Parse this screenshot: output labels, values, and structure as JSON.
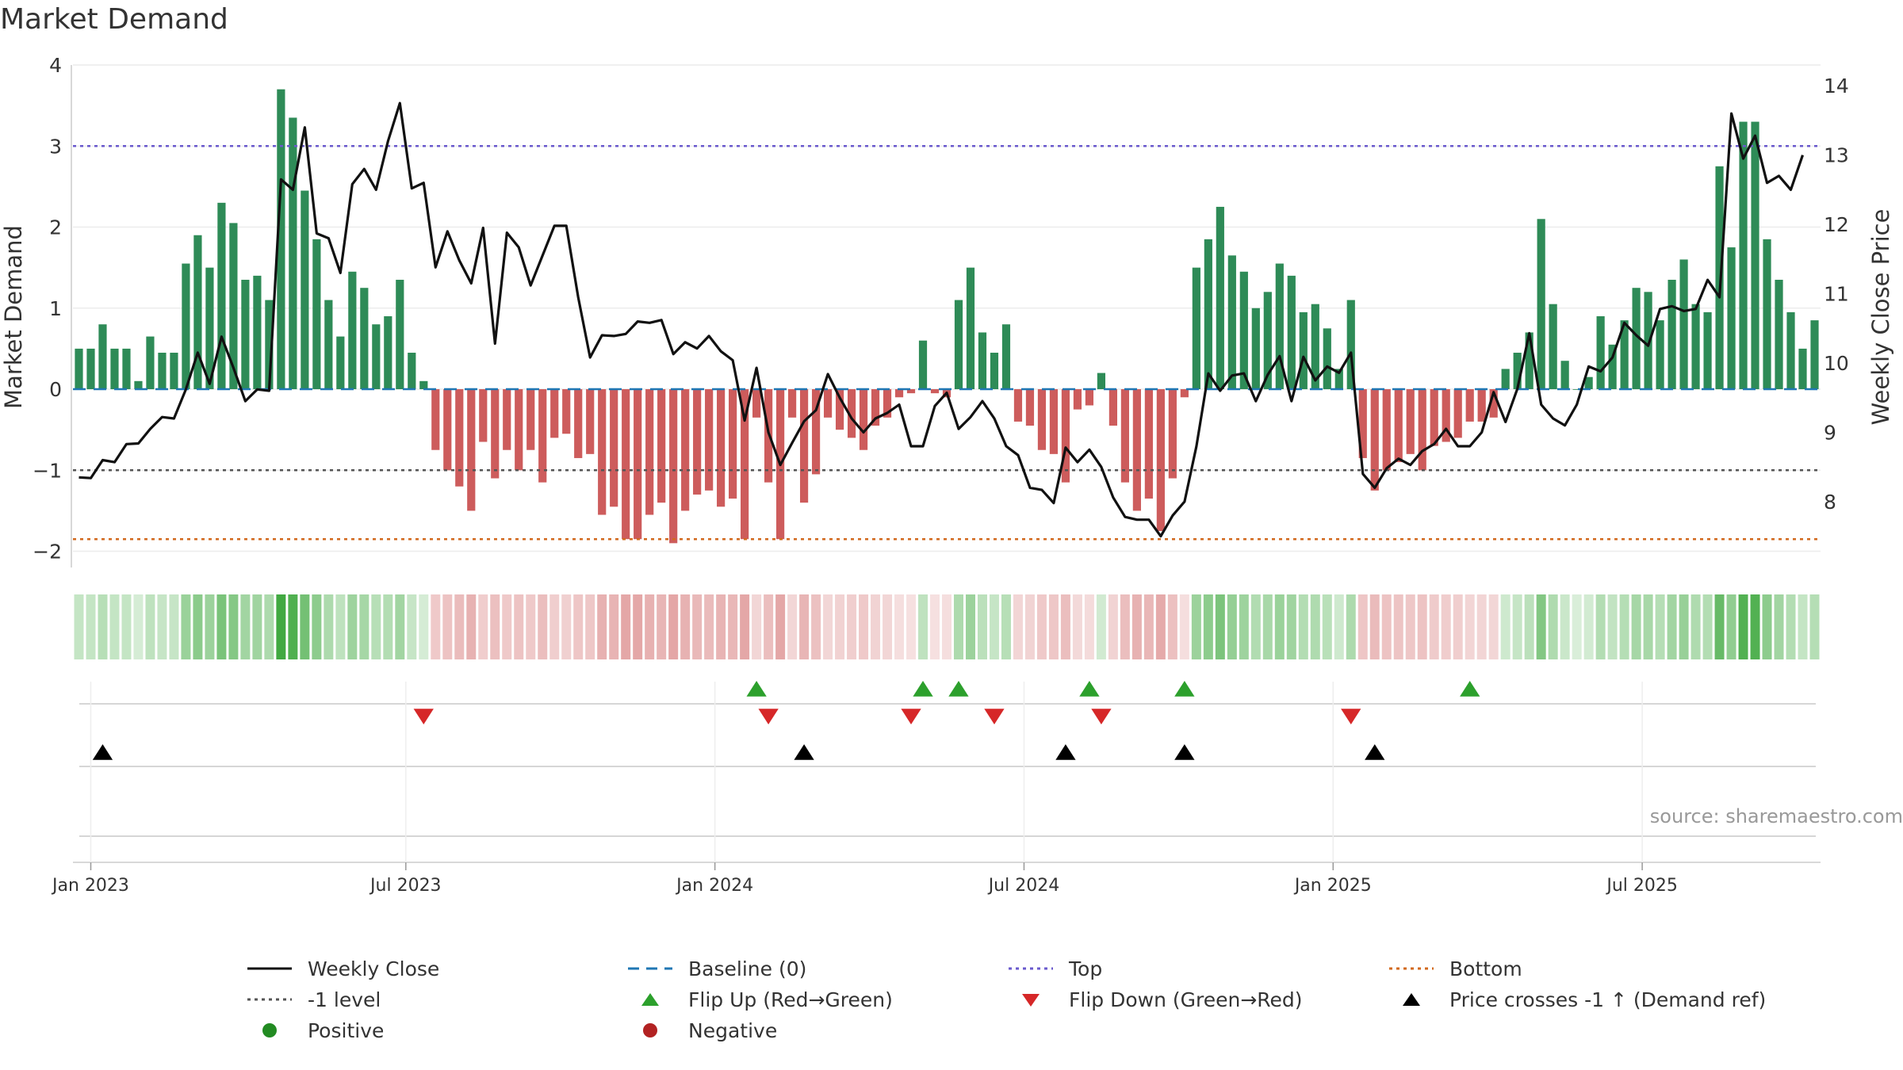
{
  "chart_data": {
    "type": "bar",
    "title": "Market Demand",
    "ylabel": "Market Demand",
    "ylabel_right": "Weekly Close Price",
    "ylim": [
      -2.2,
      4.0
    ],
    "ylim_right": [
      7.05,
      14.3
    ],
    "yticks": [
      "−2",
      "−1",
      "0",
      "1",
      "2",
      "3",
      "4"
    ],
    "yticks_right": [
      "8",
      "9",
      "10",
      "11",
      "12",
      "13",
      "14"
    ],
    "xticks": [
      "Jan 2023",
      "Jul 2023",
      "Jan 2024",
      "Jul 2024",
      "Jan 2025",
      "Jul 2025"
    ],
    "reference_lines": {
      "baseline": 0,
      "top": 3.0,
      "bottom": -1.85,
      "minus_one": -1.0
    },
    "colors": {
      "positive": "#2e8b57",
      "negative": "#cd5c5c",
      "price": "#111111",
      "baseline": "#1f77b4",
      "top": "#6a5acd",
      "bottom": "#d2691e",
      "minus_one": "#555555",
      "flip_up": "#2ca02c",
      "flip_down": "#d62728",
      "cross": "#000000"
    },
    "demand": [
      0.5,
      0.5,
      0.8,
      0.5,
      0.5,
      0.1,
      0.65,
      0.45,
      0.45,
      1.55,
      1.9,
      1.5,
      2.3,
      2.05,
      1.35,
      1.4,
      1.1,
      3.7,
      3.35,
      2.45,
      1.85,
      1.1,
      0.65,
      1.45,
      1.25,
      0.8,
      0.9,
      1.35,
      0.45,
      0.1,
      -0.75,
      -1.0,
      -1.2,
      -1.5,
      -0.65,
      -1.1,
      -0.75,
      -1.0,
      -0.75,
      -1.15,
      -0.6,
      -0.55,
      -0.85,
      -0.8,
      -1.55,
      -1.45,
      -1.85,
      -1.85,
      -1.55,
      -1.4,
      -1.9,
      -1.5,
      -1.3,
      -1.25,
      -1.45,
      -1.35,
      -1.85,
      -0.35,
      -1.15,
      -1.85,
      -0.35,
      -1.4,
      -1.05,
      -0.35,
      -0.5,
      -0.6,
      -0.75,
      -0.45,
      -0.35,
      -0.1,
      -0.05,
      0.6,
      -0.05,
      -0.1,
      1.1,
      1.5,
      0.7,
      0.45,
      0.8,
      -0.4,
      -0.45,
      -0.75,
      -0.8,
      -1.15,
      -0.25,
      -0.2,
      0.2,
      -0.45,
      -1.15,
      -1.5,
      -1.35,
      -1.75,
      -1.1,
      -0.1,
      1.5,
      1.85,
      2.25,
      1.65,
      1.45,
      1.0,
      1.2,
      1.55,
      1.4,
      0.95,
      1.05,
      0.75,
      0.25,
      1.1,
      -0.85,
      -1.25,
      -1.0,
      -0.9,
      -0.8,
      -1.0,
      -0.7,
      -0.65,
      -0.6,
      -0.4,
      -0.4,
      -0.35,
      0.25,
      0.45,
      0.7,
      2.1,
      1.05,
      0.35,
      0.0,
      0.15,
      0.9,
      0.55,
      0.85,
      1.25,
      1.2,
      0.85,
      1.35,
      1.6,
      1.05,
      0.95,
      2.75,
      1.75,
      3.3,
      3.3,
      1.85,
      1.35,
      0.95,
      0.5,
      0.85
    ],
    "price": [
      8.35,
      8.34,
      8.6,
      8.57,
      8.83,
      8.84,
      9.05,
      9.22,
      9.2,
      9.62,
      10.15,
      9.7,
      10.38,
      9.93,
      9.45,
      9.62,
      9.6,
      12.65,
      12.5,
      13.4,
      11.87,
      11.8,
      11.3,
      12.58,
      12.8,
      12.5,
      13.2,
      13.75,
      12.52,
      12.6,
      11.38,
      11.9,
      11.48,
      11.15,
      11.95,
      10.28,
      11.88,
      11.67,
      11.12,
      11.55,
      11.98,
      11.98,
      10.95,
      10.08,
      10.4,
      10.39,
      10.42,
      10.6,
      10.58,
      10.62,
      10.13,
      10.3,
      10.21,
      10.39,
      10.17,
      10.04,
      9.17,
      9.93,
      9.0,
      8.53,
      8.85,
      9.16,
      9.32,
      9.84,
      9.5,
      9.2,
      9.0,
      9.2,
      9.28,
      9.4,
      8.8,
      8.8,
      9.38,
      9.57,
      9.05,
      9.22,
      9.45,
      9.2,
      8.8,
      8.67,
      8.2,
      8.17,
      7.98,
      8.78,
      8.57,
      8.75,
      8.5,
      8.06,
      7.78,
      7.74,
      7.74,
      7.5,
      7.8,
      8.0,
      8.8,
      9.85,
      9.6,
      9.82,
      9.85,
      9.45,
      9.83,
      10.1,
      9.45,
      10.09,
      9.75,
      9.95,
      9.86,
      10.15,
      8.4,
      8.2,
      8.48,
      8.62,
      8.53,
      8.73,
      8.83,
      9.05,
      8.8,
      8.8,
      9.0,
      9.58,
      9.15,
      9.63,
      10.43,
      9.4,
      9.2,
      9.1,
      9.4,
      9.95,
      9.88,
      10.08,
      10.58,
      10.4,
      10.25,
      10.78,
      10.82,
      10.75,
      10.78,
      11.2,
      10.95,
      13.6,
      12.95,
      13.28,
      12.6,
      12.7,
      12.5,
      13.0
    ],
    "flip_up": [
      57,
      71,
      74,
      85,
      93,
      117
    ],
    "flip_down": [
      29,
      58,
      70,
      77,
      86,
      107
    ],
    "price_cross": [
      2,
      61,
      83,
      93,
      109
    ],
    "legend": {
      "weekly_close": "Weekly Close",
      "baseline": "Baseline (0)",
      "top": "Top",
      "bottom": "Bottom",
      "minus_one": "-1 level",
      "flip_up": "Flip Up (Red→Green)",
      "flip_down": "Flip Down (Green→Red)",
      "price_cross": "Price crosses -1 ↑ (Demand ref)",
      "positive": "Positive",
      "negative": "Negative"
    },
    "source": "source: sharemaestro.com"
  }
}
